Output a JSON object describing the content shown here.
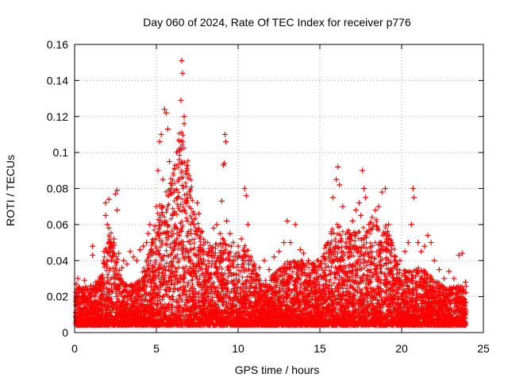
{
  "chart_data": {
    "type": "scatter",
    "title": "Day 060 of 2024, Rate Of TEC Index for receiver p776",
    "xlabel": "GPS time / hours",
    "ylabel": "ROTI / TECUs",
    "xlim": [
      0,
      25
    ],
    "ylim": [
      0,
      0.16
    ],
    "x_ticks": [
      0,
      5,
      10,
      15,
      20,
      25
    ],
    "x_tick_labels": [
      "0",
      "5",
      "10",
      "15",
      "20",
      "25"
    ],
    "y_ticks": [
      0,
      0.02,
      0.04,
      0.06,
      0.08,
      0.1,
      0.12,
      0.14,
      0.16
    ],
    "y_tick_labels": [
      "0",
      "0.02",
      "0.04",
      "0.06",
      "0.08",
      "0.1",
      "0.12",
      "0.14",
      "0.16"
    ],
    "grid": true,
    "marker": "+",
    "marker_color": "#ff0000",
    "series": [
      {
        "name": "p776",
        "points": [
          [
            0.1,
            0.027
          ],
          [
            0.2,
            0.03
          ],
          [
            0.3,
            0.025
          ],
          [
            0.5,
            0.022
          ],
          [
            0.6,
            0.029
          ],
          [
            0.8,
            0.024
          ],
          [
            1.0,
            0.026
          ],
          [
            1.1,
            0.048
          ],
          [
            1.1,
            0.043
          ],
          [
            1.3,
            0.028
          ],
          [
            1.5,
            0.024
          ],
          [
            1.7,
            0.03
          ],
          [
            1.8,
            0.045
          ],
          [
            1.9,
            0.072
          ],
          [
            1.9,
            0.065
          ],
          [
            2.0,
            0.06
          ],
          [
            2.1,
            0.058
          ],
          [
            2.1,
            0.074
          ],
          [
            2.2,
            0.05
          ],
          [
            2.3,
            0.048
          ],
          [
            2.4,
            0.052
          ],
          [
            2.5,
            0.077
          ],
          [
            2.6,
            0.079
          ],
          [
            2.6,
            0.068
          ],
          [
            2.7,
            0.044
          ],
          [
            2.9,
            0.036
          ],
          [
            3.0,
            0.04
          ],
          [
            3.2,
            0.038
          ],
          [
            3.4,
            0.045
          ],
          [
            3.6,
            0.042
          ],
          [
            3.8,
            0.04
          ],
          [
            4.0,
            0.046
          ],
          [
            4.2,
            0.048
          ],
          [
            4.4,
            0.05
          ],
          [
            4.5,
            0.055
          ],
          [
            4.6,
            0.06
          ],
          [
            4.8,
            0.05
          ],
          [
            5.0,
            0.07
          ],
          [
            5.1,
            0.09
          ],
          [
            5.2,
            0.106
          ],
          [
            5.3,
            0.11
          ],
          [
            5.4,
            0.085
          ],
          [
            5.5,
            0.124
          ],
          [
            5.6,
            0.122
          ],
          [
            5.7,
            0.113
          ],
          [
            5.8,
            0.095
          ],
          [
            5.9,
            0.08
          ],
          [
            6.0,
            0.065
          ],
          [
            6.1,
            0.058
          ],
          [
            6.3,
            0.075
          ],
          [
            6.4,
            0.096
          ],
          [
            6.5,
            0.129
          ],
          [
            6.55,
            0.151
          ],
          [
            6.6,
            0.144
          ],
          [
            6.7,
            0.12
          ],
          [
            6.7,
            0.116
          ],
          [
            6.8,
            0.088
          ],
          [
            6.9,
            0.062
          ],
          [
            7.1,
            0.055
          ],
          [
            7.3,
            0.06
          ],
          [
            7.5,
            0.072
          ],
          [
            7.6,
            0.066
          ],
          [
            7.8,
            0.056
          ],
          [
            8.0,
            0.05
          ],
          [
            8.2,
            0.045
          ],
          [
            8.5,
            0.058
          ],
          [
            8.7,
            0.06
          ],
          [
            8.9,
            0.055
          ],
          [
            9.0,
            0.073
          ],
          [
            9.1,
            0.093
          ],
          [
            9.15,
            0.094
          ],
          [
            9.2,
            0.11
          ],
          [
            9.25,
            0.106
          ],
          [
            9.3,
            0.062
          ],
          [
            9.5,
            0.055
          ],
          [
            9.7,
            0.05
          ],
          [
            10.0,
            0.048
          ],
          [
            10.2,
            0.052
          ],
          [
            10.4,
            0.08
          ],
          [
            10.5,
            0.076
          ],
          [
            10.6,
            0.06
          ],
          [
            10.8,
            0.04
          ],
          [
            11.0,
            0.038
          ],
          [
            11.3,
            0.036
          ],
          [
            11.6,
            0.04
          ],
          [
            11.9,
            0.035
          ],
          [
            12.2,
            0.042
          ],
          [
            12.5,
            0.045
          ],
          [
            12.8,
            0.05
          ],
          [
            13.0,
            0.062
          ],
          [
            13.2,
            0.05
          ],
          [
            13.5,
            0.06
          ],
          [
            13.8,
            0.046
          ],
          [
            14.0,
            0.044
          ],
          [
            14.3,
            0.04
          ],
          [
            14.6,
            0.038
          ],
          [
            14.9,
            0.04
          ],
          [
            15.2,
            0.042
          ],
          [
            15.5,
            0.05
          ],
          [
            15.7,
            0.055
          ],
          [
            15.8,
            0.075
          ],
          [
            16.0,
            0.085
          ],
          [
            16.1,
            0.092
          ],
          [
            16.2,
            0.082
          ],
          [
            16.4,
            0.07
          ],
          [
            16.6,
            0.048
          ],
          [
            16.8,
            0.052
          ],
          [
            17.0,
            0.062
          ],
          [
            17.2,
            0.068
          ],
          [
            17.4,
            0.072
          ],
          [
            17.5,
            0.065
          ],
          [
            17.6,
            0.09
          ],
          [
            17.7,
            0.08
          ],
          [
            17.8,
            0.075
          ],
          [
            18.0,
            0.06
          ],
          [
            18.2,
            0.064
          ],
          [
            18.4,
            0.068
          ],
          [
            18.6,
            0.07
          ],
          [
            18.8,
            0.078
          ],
          [
            19.0,
            0.08
          ],
          [
            19.2,
            0.06
          ],
          [
            19.4,
            0.05
          ],
          [
            19.6,
            0.042
          ],
          [
            19.9,
            0.04
          ],
          [
            20.2,
            0.045
          ],
          [
            20.4,
            0.05
          ],
          [
            20.6,
            0.06
          ],
          [
            20.7,
            0.08
          ],
          [
            20.75,
            0.075
          ],
          [
            21.0,
            0.05
          ],
          [
            21.2,
            0.045
          ],
          [
            21.4,
            0.048
          ],
          [
            21.6,
            0.054
          ],
          [
            21.8,
            0.05
          ],
          [
            22.0,
            0.04
          ],
          [
            22.3,
            0.035
          ],
          [
            22.6,
            0.03
          ],
          [
            22.9,
            0.034
          ],
          [
            23.2,
            0.03
          ],
          [
            23.5,
            0.043
          ],
          [
            23.7,
            0.044
          ],
          [
            23.9,
            0.028
          ]
        ]
      }
    ]
  }
}
